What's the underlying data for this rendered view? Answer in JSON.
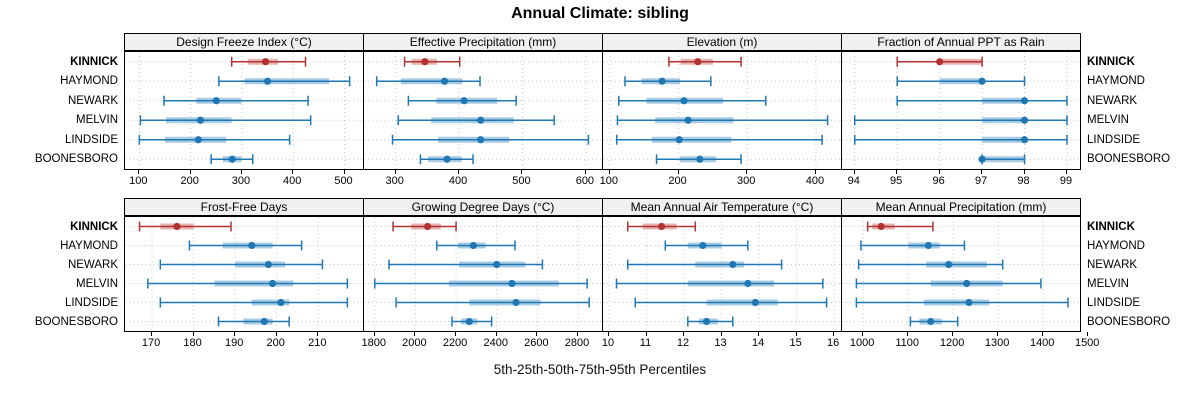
{
  "title": "Annual Climate: sibling",
  "caption": "5th-25th-50th-75th-95th Percentiles",
  "stations": [
    "KINNICK",
    "HAYMOND",
    "NEWARK",
    "MELVIN",
    "LINDSIDE",
    "BOONESBORO"
  ],
  "highlight_station": "KINNICK",
  "colors": {
    "highlight_line": "#b23232",
    "highlight_band": "#e7b3b0",
    "normal_line": "#1f77b4",
    "normal_band": "#a9cce4",
    "gridline": "#c9c9c9",
    "strip_bg": "#f0f0f0",
    "panel_border": "#000000"
  },
  "chart_data": {
    "type": "scatter",
    "subtype": "percentile-interval-dotplot",
    "title": "Annual Climate: sibling",
    "xlabel_caption": "5th-25th-50th-75th-95th Percentiles",
    "percentile_labels": [
      "5th",
      "25th",
      "50th",
      "75th",
      "95th"
    ],
    "grid": "dotted at ticks and station rows",
    "layout": "2 rows x 4 columns of panels; stations listed top-to-bottom on both sides",
    "panels": [
      {
        "title": "Design Freeze Index (°C)",
        "row": 0,
        "col": 0,
        "xticks": [
          100,
          200,
          300,
          400,
          500
        ],
        "xlim": [
          72,
          538
        ],
        "series": [
          {
            "name": "KINNICK",
            "values": [
              280,
              312,
              346,
              370,
              424
            ]
          },
          {
            "name": "HAYMOND",
            "values": [
              255,
              305,
              350,
              470,
              510
            ]
          },
          {
            "name": "NEWARK",
            "values": [
              148,
              211,
              250,
              299,
              429
            ]
          },
          {
            "name": "MELVIN",
            "values": [
              102,
              152,
              219,
              280,
              434
            ]
          },
          {
            "name": "LINDSIDE",
            "values": [
              100,
              150,
              215,
              269,
              393
            ]
          },
          {
            "name": "BOONESBORO",
            "values": [
              240,
              263,
              281,
              299,
              321
            ]
          }
        ]
      },
      {
        "title": "Effective Precipitation (mm)",
        "row": 0,
        "col": 1,
        "xticks": [
          300,
          400,
          500,
          600
        ],
        "xlim": [
          250,
          627
        ],
        "series": [
          {
            "name": "KINNICK",
            "values": [
              314,
              325,
              346,
              365,
              401
            ]
          },
          {
            "name": "HAYMOND",
            "values": [
              270,
              308,
              377,
              405,
              433
            ]
          },
          {
            "name": "NEWARK",
            "values": [
              320,
              364,
              408,
              460,
              490
            ]
          },
          {
            "name": "MELVIN",
            "values": [
              304,
              356,
              434,
              486,
              550
            ]
          },
          {
            "name": "LINDSIDE",
            "values": [
              295,
              367,
              434,
              479,
              604
            ]
          },
          {
            "name": "BOONESBORO",
            "values": [
              339,
              351,
              381,
              404,
              422
            ]
          }
        ]
      },
      {
        "title": "Elevation (m)",
        "row": 0,
        "col": 2,
        "xticks": [
          100,
          200,
          300,
          400
        ],
        "xlim": [
          90,
          438
        ],
        "series": [
          {
            "name": "KINNICK",
            "values": [
              186,
              203,
              228,
              250,
              291
            ]
          },
          {
            "name": "HAYMOND",
            "values": [
              122,
              146,
              176,
              202,
              247
            ]
          },
          {
            "name": "NEWARK",
            "values": [
              113,
              153,
              208,
              265,
              327
            ]
          },
          {
            "name": "MELVIN",
            "values": [
              111,
              166,
              214,
              280,
              417
            ]
          },
          {
            "name": "LINDSIDE",
            "values": [
              110,
              161,
              201,
              277,
              409
            ]
          },
          {
            "name": "BOONESBORO",
            "values": [
              168,
              202,
              231,
              255,
              291
            ]
          }
        ]
      },
      {
        "title": "Fraction of Annual PPT as Rain",
        "row": 0,
        "col": 3,
        "xticks": [
          94,
          95,
          96,
          97,
          98,
          99
        ],
        "xlim": [
          93.7,
          99.33
        ],
        "series": [
          {
            "name": "KINNICK",
            "values": [
              95,
              96,
              96,
              97,
              97
            ]
          },
          {
            "name": "HAYMOND",
            "values": [
              95,
              96,
              97,
              97,
              98
            ]
          },
          {
            "name": "NEWARK",
            "values": [
              95,
              97,
              98,
              98,
              99
            ]
          },
          {
            "name": "MELVIN",
            "values": [
              94,
              97,
              98,
              98,
              99
            ]
          },
          {
            "name": "LINDSIDE",
            "values": [
              94,
              97,
              98,
              98,
              99
            ]
          },
          {
            "name": "BOONESBORO",
            "values": [
              97,
              97,
              97,
              98,
              98
            ]
          }
        ]
      },
      {
        "title": "Frost-Free Days",
        "row": 1,
        "col": 0,
        "xticks": [
          170,
          180,
          190,
          200,
          210
        ],
        "xlim": [
          163.5,
          221
        ],
        "series": [
          {
            "name": "KINNICK",
            "values": [
              167,
              172,
              176,
              180,
              189
            ]
          },
          {
            "name": "HAYMOND",
            "values": [
              179,
              187,
              194,
              199,
              206
            ]
          },
          {
            "name": "NEWARK",
            "values": [
              172,
              190,
              198,
              202,
              211
            ]
          },
          {
            "name": "MELVIN",
            "values": [
              169,
              185,
              199,
              204,
              217
            ]
          },
          {
            "name": "LINDSIDE",
            "values": [
              172,
              194,
              201,
              203,
              217
            ]
          },
          {
            "name": "BOONESBORO",
            "values": [
              186,
              192,
              197,
              199,
              203
            ]
          }
        ]
      },
      {
        "title": "Growing Degree Days (°C)",
        "row": 1,
        "col": 1,
        "xticks": [
          1800,
          2000,
          2200,
          2400,
          2600,
          2800
        ],
        "xlim": [
          1747,
          2923
        ],
        "series": [
          {
            "name": "KINNICK",
            "values": [
              1890,
              1980,
              2060,
              2125,
              2200
            ]
          },
          {
            "name": "HAYMOND",
            "values": [
              2105,
              2210,
              2285,
              2345,
              2490
            ]
          },
          {
            "name": "NEWARK",
            "values": [
              1870,
              2215,
              2400,
              2540,
              2625
            ]
          },
          {
            "name": "MELVIN",
            "values": [
              1800,
              2165,
              2475,
              2705,
              2845
            ]
          },
          {
            "name": "LINDSIDE",
            "values": [
              1905,
              2265,
              2495,
              2615,
              2855
            ]
          },
          {
            "name": "BOONESBORO",
            "values": [
              2180,
              2225,
              2265,
              2305,
              2375
            ]
          }
        ]
      },
      {
        "title": "Mean Annual Air Temperature (°C)",
        "row": 1,
        "col": 2,
        "xticks": [
          10,
          11,
          12,
          13,
          14,
          15,
          16
        ],
        "xlim": [
          9.84,
          16.21
        ],
        "series": [
          {
            "name": "KINNICK",
            "values": [
              10.5,
              10.9,
              11.4,
              11.8,
              12.3
            ]
          },
          {
            "name": "HAYMOND",
            "values": [
              11.5,
              12.1,
              12.5,
              13.0,
              13.7
            ]
          },
          {
            "name": "NEWARK",
            "values": [
              10.5,
              12.3,
              13.3,
              13.6,
              14.6
            ]
          },
          {
            "name": "MELVIN",
            "values": [
              10.2,
              12.1,
              13.7,
              14.4,
              15.7
            ]
          },
          {
            "name": "LINDSIDE",
            "values": [
              10.7,
              12.6,
              13.9,
              14.5,
              15.8
            ]
          },
          {
            "name": "BOONESBORO",
            "values": [
              12.1,
              12.4,
              12.6,
              12.9,
              13.3
            ]
          }
        ]
      },
      {
        "title": "Mean Annual Precipitation (mm)",
        "row": 1,
        "col": 3,
        "xticks": [
          1000,
          1100,
          1200,
          1300,
          1400,
          1500
        ],
        "xlim": [
          953,
          1484
        ],
        "series": [
          {
            "name": "KINNICK",
            "values": [
              1010,
              1020,
              1040,
              1070,
              1155
            ]
          },
          {
            "name": "HAYMOND",
            "values": [
              995,
              1100,
              1145,
              1170,
              1225
            ]
          },
          {
            "name": "NEWARK",
            "values": [
              990,
              1140,
              1190,
              1275,
              1310
            ]
          },
          {
            "name": "MELVIN",
            "values": [
              985,
              1150,
              1230,
              1310,
              1395
            ]
          },
          {
            "name": "LINDSIDE",
            "values": [
              985,
              1135,
              1235,
              1280,
              1455
            ]
          },
          {
            "name": "BOONESBORO",
            "values": [
              1105,
              1125,
              1150,
              1175,
              1210
            ]
          }
        ]
      }
    ]
  }
}
